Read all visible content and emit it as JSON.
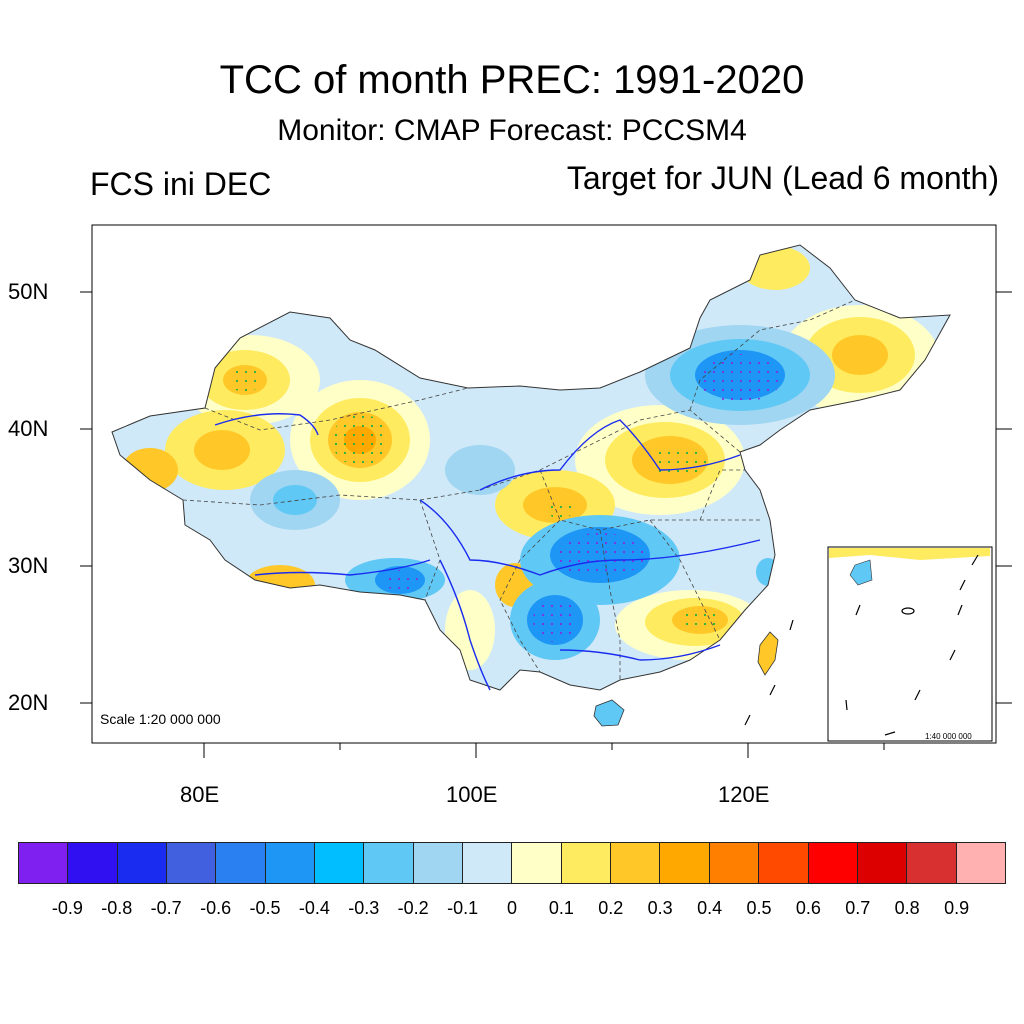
{
  "title": "TCC of month PREC: 1991-2020",
  "subtitle": "Monitor: CMAP   Forecast: PCCSM4",
  "left_label": "FCS ini DEC",
  "right_label": "Target for JUN (Lead 6 month)",
  "map": {
    "lat_labels": [
      "50N",
      "40N",
      "30N",
      "20N"
    ],
    "lon_labels": [
      "80E",
      "100E",
      "120E"
    ],
    "scale_main": "Scale 1:20 000 000",
    "scale_inset": "1:40 000 000"
  },
  "colorbar": {
    "colors": [
      "#8020f0",
      "#3010f0",
      "#1a2cf0",
      "#4060e0",
      "#2a80f0",
      "#1e96f5",
      "#00beff",
      "#60c8f5",
      "#a0d6f2",
      "#cfe9f8",
      "#ffffc8",
      "#ffeb60",
      "#ffc828",
      "#ffa800",
      "#ff8000",
      "#ff4a00",
      "#ff0000",
      "#dc0000",
      "#d83030",
      "#ffb0b0"
    ],
    "labels": [
      "-0.9",
      "-0.8",
      "-0.7",
      "-0.6",
      "-0.5",
      "-0.4",
      "-0.3",
      "-0.2",
      "-0.1",
      "0",
      "0.1",
      "0.2",
      "0.3",
      "0.4",
      "0.5",
      "0.6",
      "0.7",
      "0.8",
      "0.9"
    ]
  }
}
